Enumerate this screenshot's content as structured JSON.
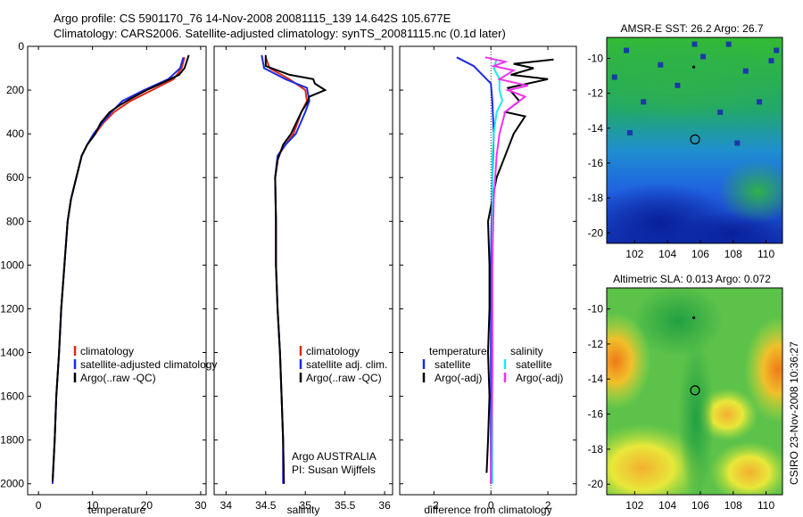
{
  "header": {
    "line1": "Argo profile: CS 5901170_76 14-Nov-2008 20081115_139 14.642S 105.677E",
    "line2": "Climatology: CARS2006. Satellite-adjusted climatology: synTS_20081115.nc (0.1d later)"
  },
  "credit": "CSIRO 23-Nov-2008 10:36:27",
  "colors": {
    "red": "#dd2a1a",
    "blue": "#1a2ae8",
    "black": "#000000",
    "cyan": "#22e8e8",
    "magenta": "#ee33ee"
  },
  "chart_data": [
    {
      "type": "line",
      "xlabel": "temperature",
      "xlim": [
        -2,
        31
      ],
      "ylim": [
        2050,
        0
      ],
      "xticks": [
        0,
        10,
        20,
        30
      ],
      "yticks": [
        0,
        200,
        400,
        600,
        800,
        1000,
        1200,
        1400,
        1600,
        1800,
        2000
      ],
      "legend": [
        "climatology",
        "satellite-adjusted climatology",
        "Argo(..raw -QC)"
      ],
      "series": [
        {
          "name": "climatology",
          "color": "red",
          "points": [
            [
              27,
              50
            ],
            [
              26.5,
              100
            ],
            [
              25,
              150
            ],
            [
              21,
              200
            ],
            [
              17,
              250
            ],
            [
              14,
              300
            ],
            [
              12,
              350
            ],
            [
              10.5,
              400
            ],
            [
              9,
              450
            ],
            [
              8,
              500
            ],
            [
              7,
              600
            ],
            [
              6,
              700
            ],
            [
              5.4,
              800
            ],
            [
              4.8,
              1000
            ],
            [
              4.2,
              1200
            ],
            [
              3.8,
              1400
            ],
            [
              3.3,
              1600
            ],
            [
              3,
              1800
            ],
            [
              2.6,
              2000
            ]
          ]
        },
        {
          "name": "satellite-adjusted climatology",
          "color": "blue",
          "points": [
            [
              26.8,
              50
            ],
            [
              26.2,
              100
            ],
            [
              24,
              150
            ],
            [
              19.5,
              200
            ],
            [
              15.5,
              250
            ],
            [
              13.5,
              300
            ],
            [
              11.8,
              350
            ],
            [
              10.2,
              400
            ],
            [
              9,
              450
            ],
            [
              8,
              500
            ],
            [
              7,
              600
            ],
            [
              6,
              700
            ],
            [
              5.4,
              800
            ],
            [
              4.8,
              1000
            ],
            [
              4.2,
              1200
            ],
            [
              3.8,
              1400
            ],
            [
              3.3,
              1600
            ],
            [
              3,
              1800
            ],
            [
              2.6,
              2000
            ]
          ]
        },
        {
          "name": "Argo(..raw -QC)",
          "color": "black",
          "points": [
            [
              27.8,
              40
            ],
            [
              27,
              100
            ],
            [
              26,
              130
            ],
            [
              23.5,
              160
            ],
            [
              20,
              200
            ],
            [
              17,
              240
            ],
            [
              15,
              270
            ],
            [
              13.2,
              300
            ],
            [
              11.5,
              350
            ],
            [
              10.5,
              400
            ],
            [
              9,
              450
            ],
            [
              8,
              500
            ],
            [
              7,
              600
            ],
            [
              6,
              700
            ],
            [
              5.4,
              800
            ],
            [
              4.8,
              1000
            ],
            [
              4.2,
              1200
            ],
            [
              3.8,
              1400
            ],
            [
              3.3,
              1600
            ],
            [
              3,
              1800
            ],
            [
              2.6,
              1990
            ]
          ]
        }
      ]
    },
    {
      "type": "line",
      "xlabel": "salinity",
      "xlim": [
        33.85,
        36.1
      ],
      "ylim": [
        2050,
        0
      ],
      "xticks": [
        34,
        34.5,
        35,
        35.5,
        36
      ],
      "legend": [
        "climatology",
        "satellite adj. clim.",
        "Argo(..raw -QC)"
      ],
      "annotations": [
        "Argo AUSTRALIA",
        "PI: Susan Wijffels"
      ],
      "series": [
        {
          "name": "climatology",
          "color": "red",
          "points": [
            [
              34.5,
              50
            ],
            [
              34.55,
              100
            ],
            [
              34.8,
              150
            ],
            [
              35,
              200
            ],
            [
              35.02,
              250
            ],
            [
              34.95,
              300
            ],
            [
              34.85,
              400
            ],
            [
              34.75,
              450
            ],
            [
              34.66,
              500
            ],
            [
              34.62,
              600
            ],
            [
              34.63,
              800
            ],
            [
              34.63,
              1000
            ],
            [
              34.65,
              1200
            ],
            [
              34.68,
              1400
            ],
            [
              34.7,
              1600
            ],
            [
              34.72,
              1800
            ],
            [
              34.73,
              2000
            ]
          ]
        },
        {
          "name": "satellite adj. clim.",
          "color": "blue",
          "points": [
            [
              34.45,
              40
            ],
            [
              34.48,
              100
            ],
            [
              34.75,
              150
            ],
            [
              35.02,
              190
            ],
            [
              35.05,
              250
            ],
            [
              35,
              300
            ],
            [
              34.88,
              400
            ],
            [
              34.75,
              450
            ],
            [
              34.65,
              500
            ],
            [
              34.62,
              600
            ],
            [
              34.63,
              800
            ],
            [
              34.63,
              1000
            ],
            [
              34.65,
              1200
            ],
            [
              34.68,
              1400
            ],
            [
              34.7,
              1600
            ],
            [
              34.72,
              1800
            ],
            [
              34.72,
              2000
            ]
          ]
        },
        {
          "name": "Argo(..raw -QC)",
          "color": "black",
          "points": [
            [
              34.5,
              40
            ],
            [
              34.5,
              90
            ],
            [
              34.8,
              130
            ],
            [
              35.1,
              150
            ],
            [
              35.12,
              170
            ],
            [
              35.25,
              200
            ],
            [
              35.05,
              230
            ],
            [
              35.02,
              260
            ],
            [
              34.95,
              300
            ],
            [
              34.82,
              400
            ],
            [
              34.72,
              450
            ],
            [
              34.65,
              520
            ],
            [
              34.62,
              600
            ],
            [
              34.63,
              800
            ],
            [
              34.63,
              1000
            ],
            [
              34.65,
              1200
            ],
            [
              34.68,
              1400
            ],
            [
              34.7,
              1600
            ],
            [
              34.72,
              1800
            ],
            [
              34.73,
              2000
            ]
          ]
        }
      ]
    },
    {
      "type": "line",
      "xlabel": "difference from climatology",
      "xlim": [
        -3.2,
        3.0
      ],
      "ylim": [
        2050,
        0
      ],
      "xticks": [
        -2,
        0,
        2
      ],
      "legend": [
        "temperature",
        "satellite",
        "Argo(-adj)",
        "salinity",
        "satellite",
        "Argo(-adj)"
      ],
      "series": [
        {
          "name": "temperature satellite",
          "color": "blue",
          "points": [
            [
              -1.2,
              50
            ],
            [
              -0.6,
              90
            ],
            [
              -0.3,
              130
            ],
            [
              0,
              170
            ],
            [
              0.05,
              250
            ],
            [
              0.1,
              400
            ],
            [
              0.05,
              600
            ],
            [
              0,
              1000
            ],
            [
              0,
              2000
            ]
          ]
        },
        {
          "name": "temperature Argo(-adj)",
          "color": "black",
          "points": [
            [
              2.2,
              60
            ],
            [
              0.8,
              80
            ],
            [
              1.5,
              100
            ],
            [
              0.7,
              130
            ],
            [
              2,
              150
            ],
            [
              0.6,
              190
            ],
            [
              1,
              250
            ],
            [
              0.5,
              300
            ],
            [
              1.2,
              320
            ],
            [
              0.8,
              400
            ],
            [
              0.5,
              500
            ],
            [
              0.2,
              600
            ],
            [
              0.05,
              700
            ],
            [
              -0.1,
              800
            ],
            [
              -0.05,
              1000
            ],
            [
              -0.05,
              1200
            ],
            [
              -0.1,
              1400
            ],
            [
              -0.05,
              1600
            ],
            [
              -0.1,
              1800
            ],
            [
              -0.15,
              1950
            ]
          ]
        },
        {
          "name": "salinity satellite",
          "color": "cyan",
          "points": [
            [
              0.2,
              60
            ],
            [
              0.1,
              100
            ],
            [
              0.3,
              150
            ],
            [
              0.3,
              200
            ],
            [
              0.4,
              250
            ],
            [
              0.2,
              300
            ],
            [
              0.1,
              400
            ],
            [
              0.05,
              500
            ],
            [
              0.05,
              700
            ],
            [
              0.05,
              1000
            ],
            [
              0.05,
              1500
            ],
            [
              0.05,
              2000
            ]
          ]
        },
        {
          "name": "salinity Argo(-adj)",
          "color": "magenta",
          "points": [
            [
              -0.2,
              50
            ],
            [
              0.5,
              70
            ],
            [
              0.1,
              90
            ],
            [
              0.8,
              110
            ],
            [
              0.3,
              150
            ],
            [
              1.3,
              180
            ],
            [
              0.6,
              200
            ],
            [
              1.2,
              230
            ],
            [
              0.8,
              270
            ],
            [
              0.5,
              300
            ],
            [
              0.3,
              400
            ],
            [
              0.2,
              500
            ],
            [
              0.1,
              700
            ],
            [
              0.05,
              1000
            ],
            [
              0.05,
              1500
            ],
            [
              0,
              2000
            ]
          ]
        }
      ]
    },
    {
      "type": "heatmap",
      "title": "AMSR-E SST: 26.2 Argo: 26.7",
      "xlim": [
        100.3,
        111
      ],
      "ylim": [
        -20.6,
        -8.8
      ],
      "xticks": [
        102,
        104,
        106,
        108,
        110
      ],
      "yticks": [
        -10,
        -12,
        -14,
        -16,
        -18,
        -20
      ],
      "markers": [
        {
          "lon": 105.677,
          "lat": -14.642,
          "kind": "circle"
        },
        {
          "lon": 105.6,
          "lat": -10.5,
          "kind": "dot"
        }
      ],
      "colormap": "blue-to-green"
    },
    {
      "type": "heatmap",
      "title": "Altimetric SLA: 0.013 Argo: 0.072",
      "xlim": [
        100.3,
        111
      ],
      "ylim": [
        -20.6,
        -8.8
      ],
      "xticks": [
        102,
        104,
        106,
        108,
        110
      ],
      "yticks": [
        -10,
        -12,
        -14,
        -16,
        -18,
        -20
      ],
      "markers": [
        {
          "lon": 105.677,
          "lat": -14.642,
          "kind": "circle"
        },
        {
          "lon": 105.6,
          "lat": -10.5,
          "kind": "dot"
        }
      ],
      "colormap": "green-to-orange"
    }
  ]
}
